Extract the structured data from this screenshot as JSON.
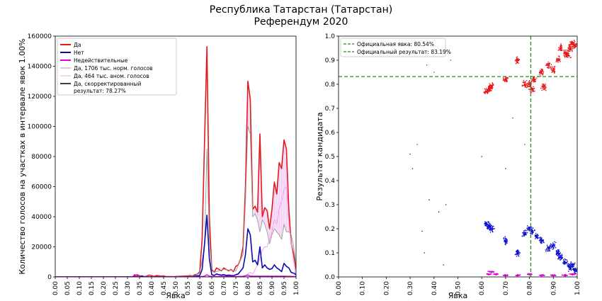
{
  "figure": {
    "title_line1": "Республика Татарстан (Татарстан)",
    "title_line2": "Референдум 2020"
  },
  "chart_data": [
    {
      "type": "line",
      "xlabel": "Явка",
      "ylabel": "Количество голосов на участках в интервале явок 1.00%",
      "xlim": [
        0,
        1
      ],
      "ylim": [
        0,
        160000
      ],
      "xticks": [
        0.0,
        0.05,
        0.1,
        0.15,
        0.2,
        0.25,
        0.3,
        0.35,
        0.4,
        0.45,
        0.5,
        0.55,
        0.6,
        0.65,
        0.7,
        0.75,
        0.8,
        0.85,
        0.9,
        0.95,
        1.0
      ],
      "xtick_labels": [
        "0.00",
        "0.05",
        "0.10",
        "0.15",
        "0.20",
        "0.25",
        "0.30",
        "0.35",
        "0.40",
        "0.45",
        "0.50",
        "0.55",
        "0.60",
        "0.65",
        "0.70",
        "0.75",
        "0.80",
        "0.85",
        "0.90",
        "0.95",
        "1.00"
      ],
      "yticks": [
        0,
        20000,
        40000,
        60000,
        80000,
        100000,
        120000,
        140000,
        160000
      ],
      "ytick_labels": [
        "0",
        "20000",
        "40000",
        "60000",
        "80000",
        "100000",
        "120000",
        "140000",
        "160000"
      ],
      "legend": {
        "placement": "top-left",
        "entries": [
          {
            "label": "Да",
            "color": "#e31a1c",
            "width": 2
          },
          {
            "label": "Нет",
            "color": "#0a0ab4",
            "width": 2
          },
          {
            "label": "Недействительные",
            "color": "#e000e0",
            "width": 2
          },
          {
            "label": "Да, 1706 тыс. норм. голосов",
            "color": "#a0a0a0",
            "width": 1
          },
          {
            "label": "Да, 464 тыс. аном. голосов",
            "color": "#f0a0f0",
            "width": 1
          },
          {
            "label": "Да, скорректированный результат: 78.27%",
            "color": "#000000",
            "width": 1.5
          }
        ]
      },
      "series": [
        {
          "name": "Да",
          "color": "#e31a1c",
          "x": [
            0,
            0.3,
            0.32,
            0.33,
            0.34,
            0.35,
            0.36,
            0.38,
            0.39,
            0.4,
            0.41,
            0.42,
            0.44,
            0.45,
            0.46,
            0.5,
            0.53,
            0.55,
            0.56,
            0.57,
            0.58,
            0.59,
            0.6,
            0.61,
            0.62,
            0.63,
            0.64,
            0.65,
            0.66,
            0.67,
            0.68,
            0.69,
            0.7,
            0.71,
            0.72,
            0.73,
            0.74,
            0.75,
            0.76,
            0.77,
            0.78,
            0.79,
            0.8,
            0.81,
            0.82,
            0.83,
            0.84,
            0.85,
            0.86,
            0.87,
            0.88,
            0.89,
            0.9,
            0.91,
            0.92,
            0.93,
            0.94,
            0.95,
            0.96,
            0.97,
            0.98,
            0.99,
            1.0
          ],
          "y": [
            0,
            0,
            0,
            500,
            1500,
            800,
            0,
            500,
            1200,
            900,
            300,
            900,
            500,
            700,
            200,
            300,
            500,
            700,
            900,
            600,
            1500,
            1800,
            3500,
            25000,
            90000,
            153000,
            40000,
            5000,
            3000,
            6000,
            5000,
            4000,
            6000,
            5000,
            4000,
            5000,
            3500,
            7000,
            8000,
            12000,
            20000,
            60000,
            130000,
            118000,
            45000,
            47000,
            43000,
            95000,
            40000,
            46000,
            44000,
            32000,
            45000,
            63000,
            55000,
            76000,
            72000,
            91000,
            85000,
            45000,
            22000,
            15000,
            5000
          ]
        },
        {
          "name": "Да, 1706 тыс. норм. голосов",
          "color": "#a0a0a0",
          "x": [
            0,
            0.55,
            0.58,
            0.6,
            0.62,
            0.63,
            0.64,
            0.65,
            0.66,
            0.7,
            0.75,
            0.78,
            0.79,
            0.8,
            0.81,
            0.82,
            0.83,
            0.84,
            0.85,
            0.86,
            0.87,
            0.88,
            0.89,
            0.9,
            0.91,
            0.92,
            0.93,
            0.94,
            0.95,
            0.96,
            0.97,
            0.98,
            0.99,
            1.0
          ],
          "y": [
            0,
            300,
            1000,
            2500,
            20000,
            85000,
            25000,
            4000,
            3000,
            5000,
            4000,
            15000,
            50000,
            100000,
            95000,
            40000,
            42000,
            38000,
            30000,
            38000,
            35000,
            30000,
            22000,
            28000,
            32000,
            30000,
            28000,
            25000,
            35000,
            30000,
            30000,
            28000,
            20000,
            8000
          ]
        },
        {
          "name": "Да, 464 тыс. аном. голосов",
          "color": "#f0a0f0",
          "x": [
            0,
            0.78,
            0.8,
            0.81,
            0.82,
            0.83,
            0.84,
            0.85,
            0.86,
            0.87,
            0.88,
            0.89,
            0.9,
            0.91,
            0.92,
            0.93,
            0.94,
            0.95,
            0.96,
            0.97,
            0.98,
            0.99,
            1.0
          ],
          "y": [
            0,
            0,
            2000,
            3000,
            2000,
            5000,
            8000,
            12000,
            18000,
            20000,
            20000,
            25000,
            30000,
            38000,
            35000,
            45000,
            50000,
            58000,
            60000,
            35000,
            22000,
            10000,
            0
          ]
        },
        {
          "name": "Да, скорректированный результат: 78.27%",
          "color": "#000000",
          "x": [
            0,
            1.0
          ],
          "y": [
            0,
            0
          ]
        },
        {
          "name": "Нет",
          "color": "#0a0ab4",
          "x": [
            0,
            0.35,
            0.36,
            0.37,
            0.4,
            0.55,
            0.57,
            0.58,
            0.6,
            0.61,
            0.62,
            0.63,
            0.64,
            0.65,
            0.66,
            0.67,
            0.68,
            0.69,
            0.7,
            0.71,
            0.72,
            0.73,
            0.74,
            0.75,
            0.76,
            0.77,
            0.78,
            0.79,
            0.8,
            0.81,
            0.82,
            0.83,
            0.84,
            0.85,
            0.86,
            0.87,
            0.88,
            0.89,
            0.9,
            0.91,
            0.92,
            0.93,
            0.94,
            0.95,
            0.96,
            0.97,
            0.98,
            0.99,
            1.0
          ],
          "y": [
            0,
            0,
            700,
            0,
            0,
            0,
            300,
            500,
            1000,
            5000,
            22000,
            41000,
            12000,
            1500,
            1000,
            2000,
            1500,
            1200,
            1500,
            1000,
            1200,
            1000,
            800,
            1500,
            2000,
            4000,
            6000,
            15000,
            32000,
            28000,
            10000,
            11000,
            8000,
            20000,
            6000,
            8000,
            6000,
            5000,
            5500,
            8000,
            6000,
            5000,
            3500,
            9000,
            7000,
            6000,
            3000,
            2500,
            1500
          ]
        },
        {
          "name": "Недействительные",
          "color": "#e000e0",
          "x": [
            0,
            0.3,
            0.32,
            0.33,
            0.35,
            0.55,
            0.6,
            0.62,
            0.63,
            0.64,
            0.66,
            0.7,
            0.75,
            0.78,
            0.79,
            0.8,
            0.81,
            0.82,
            0.85,
            0.9,
            0.95,
            1.0
          ],
          "y": [
            0,
            0,
            0,
            1500,
            0,
            0,
            200,
            500,
            1500,
            500,
            200,
            400,
            300,
            400,
            800,
            1200,
            600,
            500,
            500,
            500,
            500,
            300
          ]
        }
      ]
    },
    {
      "type": "scatter",
      "xlabel": "Явка",
      "ylabel": "Результат кандидата",
      "xlim": [
        0,
        1
      ],
      "ylim": [
        0,
        1
      ],
      "xticks": [
        0.0,
        0.1,
        0.2,
        0.3,
        0.4,
        0.5,
        0.6,
        0.7,
        0.8,
        0.9,
        1.0
      ],
      "xtick_labels": [
        "0.00",
        "0.10",
        "0.20",
        "0.30",
        "0.40",
        "0.50",
        "0.60",
        "0.70",
        "0.80",
        "0.90",
        "1.00"
      ],
      "yticks": [
        0.0,
        0.1,
        0.2,
        0.3,
        0.4,
        0.5,
        0.6,
        0.7,
        0.8,
        0.9,
        1.0
      ],
      "ytick_labels": [
        "0.0",
        "0.1",
        "0.2",
        "0.3",
        "0.4",
        "0.5",
        "0.6",
        "0.7",
        "0.8",
        "0.9",
        "1.0"
      ],
      "reference_lines": [
        {
          "label": "Официальная явка: 80.54%",
          "orientation": "vertical",
          "value": 0.8054,
          "color": "#228b22"
        },
        {
          "label": "Официальный результат: 83.19%",
          "orientation": "horizontal",
          "value": 0.8319,
          "color": "#228b22"
        }
      ],
      "legend": {
        "placement": "top-left"
      },
      "clusters": [
        {
          "name": "Да",
          "color": "#e31a1c",
          "points": [
            [
              0.63,
              0.78
            ],
            [
              0.64,
              0.79
            ],
            [
              0.62,
              0.77
            ],
            [
              0.8,
              0.8
            ],
            [
              0.81,
              0.78
            ],
            [
              0.85,
              0.85
            ],
            [
              0.88,
              0.88
            ],
            [
              0.92,
              0.9
            ],
            [
              0.95,
              0.93
            ],
            [
              0.97,
              0.95
            ],
            [
              0.98,
              0.97
            ],
            [
              0.99,
              0.96
            ],
            [
              0.96,
              0.92
            ],
            [
              0.9,
              0.86
            ],
            [
              0.82,
              0.82
            ],
            [
              0.86,
              0.79
            ],
            [
              0.78,
              0.8
            ],
            [
              0.93,
              0.95
            ],
            [
              0.7,
              0.82
            ],
            [
              0.75,
              0.9
            ]
          ]
        },
        {
          "name": "Нет",
          "color": "#1010d0",
          "points": [
            [
              0.63,
              0.21
            ],
            [
              0.64,
              0.2
            ],
            [
              0.62,
              0.22
            ],
            [
              0.8,
              0.2
            ],
            [
              0.81,
              0.19
            ],
            [
              0.85,
              0.15
            ],
            [
              0.88,
              0.12
            ],
            [
              0.92,
              0.1
            ],
            [
              0.95,
              0.06
            ],
            [
              0.97,
              0.04
            ],
            [
              0.98,
              0.05
            ],
            [
              0.99,
              0.03
            ],
            [
              0.9,
              0.13
            ],
            [
              0.83,
              0.17
            ],
            [
              0.78,
              0.18
            ],
            [
              0.93,
              0.08
            ],
            [
              0.7,
              0.15
            ],
            [
              0.75,
              0.1
            ]
          ]
        },
        {
          "name": "Недействительные",
          "color": "#e000e0",
          "points": [
            [
              0.63,
              0.01
            ],
            [
              0.64,
              0.02
            ],
            [
              0.7,
              0.005
            ],
            [
              0.75,
              0.005
            ],
            [
              0.8,
              0.01
            ],
            [
              0.85,
              0.005
            ],
            [
              0.9,
              0.005
            ],
            [
              0.95,
              0.005
            ],
            [
              0.98,
              0.01
            ],
            [
              0.66,
              0.01
            ]
          ]
        }
      ]
    }
  ]
}
